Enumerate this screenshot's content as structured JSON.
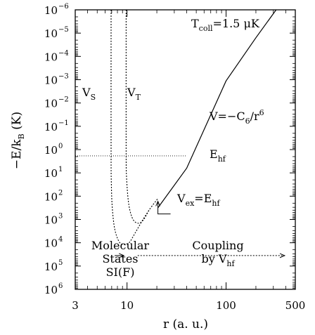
{
  "chart_data": {
    "type": "line",
    "xlabel": "r (a. u.)",
    "ylabel": "−E/k",
    "ylabel_sub": "B",
    "ylabel_unit": " (K)",
    "xscale": "log",
    "yscale": "log",
    "y_inverted": true,
    "xlim": [
      3,
      500
    ],
    "ylim_exponent": [
      -6,
      6
    ],
    "x_ticks": [
      {
        "value": 3,
        "label": "3"
      },
      {
        "value": 10,
        "label": "10"
      },
      {
        "value": 100,
        "label": "100"
      },
      {
        "value": 500,
        "label": "500"
      }
    ],
    "y_ticks": [
      {
        "exp": -6,
        "base": "10",
        "sup": "−6"
      },
      {
        "exp": -5,
        "base": "10",
        "sup": "−5"
      },
      {
        "exp": -4,
        "base": "10",
        "sup": "−4"
      },
      {
        "exp": -3,
        "base": "10",
        "sup": "−3"
      },
      {
        "exp": -2,
        "base": "10",
        "sup": "−2"
      },
      {
        "exp": -1,
        "base": "10",
        "sup": "−1"
      },
      {
        "exp": 0,
        "base": "10",
        "sup": "0"
      },
      {
        "exp": 1,
        "base": "10",
        "sup": "1"
      },
      {
        "exp": 2,
        "base": "10",
        "sup": "2"
      },
      {
        "exp": 3,
        "base": "10",
        "sup": "3"
      },
      {
        "exp": 4,
        "base": "10",
        "sup": "4"
      },
      {
        "exp": 5,
        "base": "10",
        "sup": "5"
      },
      {
        "exp": 6,
        "base": "10",
        "sup": "6"
      }
    ],
    "series": [
      {
        "label_main": "V=−C",
        "label_sub": "6",
        "label_tail": "/r",
        "label_sup": "6",
        "style": "solid",
        "points": [
          [
            20.5,
            2.5
          ],
          [
            40,
            0.8
          ],
          [
            100,
            -2.95
          ],
          [
            200,
            -4.8
          ],
          [
            320,
            -6
          ]
        ]
      },
      {
        "label_main": "V",
        "label_sub": "S",
        "style": "dashed",
        "points": [
          [
            6.9,
            -6
          ],
          [
            6.9,
            0
          ],
          [
            6.95,
            1.5
          ],
          [
            7.1,
            2.5
          ],
          [
            7.5,
            3.4
          ],
          [
            8.3,
            3.95
          ],
          [
            9.3,
            4.08
          ],
          [
            10.5,
            4.0
          ],
          [
            12,
            3.6
          ],
          [
            14.5,
            3.0
          ],
          [
            17,
            2.55
          ]
        ]
      },
      {
        "label_main": "V",
        "label_sub": "T",
        "style": "dashed",
        "points": [
          [
            9.8,
            -6
          ],
          [
            9.8,
            0
          ],
          [
            9.9,
            1.2
          ],
          [
            10.3,
            2.2
          ],
          [
            11,
            2.8
          ],
          [
            12,
            3.1
          ],
          [
            13.5,
            3.15
          ],
          [
            15,
            2.95
          ],
          [
            17,
            2.55
          ],
          [
            20.5,
            2.1
          ]
        ]
      }
    ],
    "reference_line": {
      "label": "E",
      "label_sub": "hf",
      "exp": 0.27,
      "style": "dotted"
    },
    "annotations": {
      "tcoll_main": "T",
      "tcoll_sub": "coll",
      "tcoll_tail": "=1.5 μK",
      "vex_main": "V",
      "vex_sub1": "ex",
      "vex_mid": "=E",
      "vex_sub2": "hf",
      "molecular_line1": "Molecular",
      "molecular_line2": "States",
      "molecular_line3": "SI(F)",
      "coupling_line1": "Coupling",
      "coupling_line2": "by V",
      "coupling_sub": "hf"
    },
    "arrows": [
      {
        "from": [
          7.5,
          4.55
        ],
        "to": [
          9.3,
          4.55
        ]
      },
      {
        "from": [
          12.8,
          4.55
        ],
        "to": [
          390,
          4.55
        ]
      }
    ],
    "vex_marker": {
      "r": 20.5,
      "exp": 2.1
    }
  }
}
